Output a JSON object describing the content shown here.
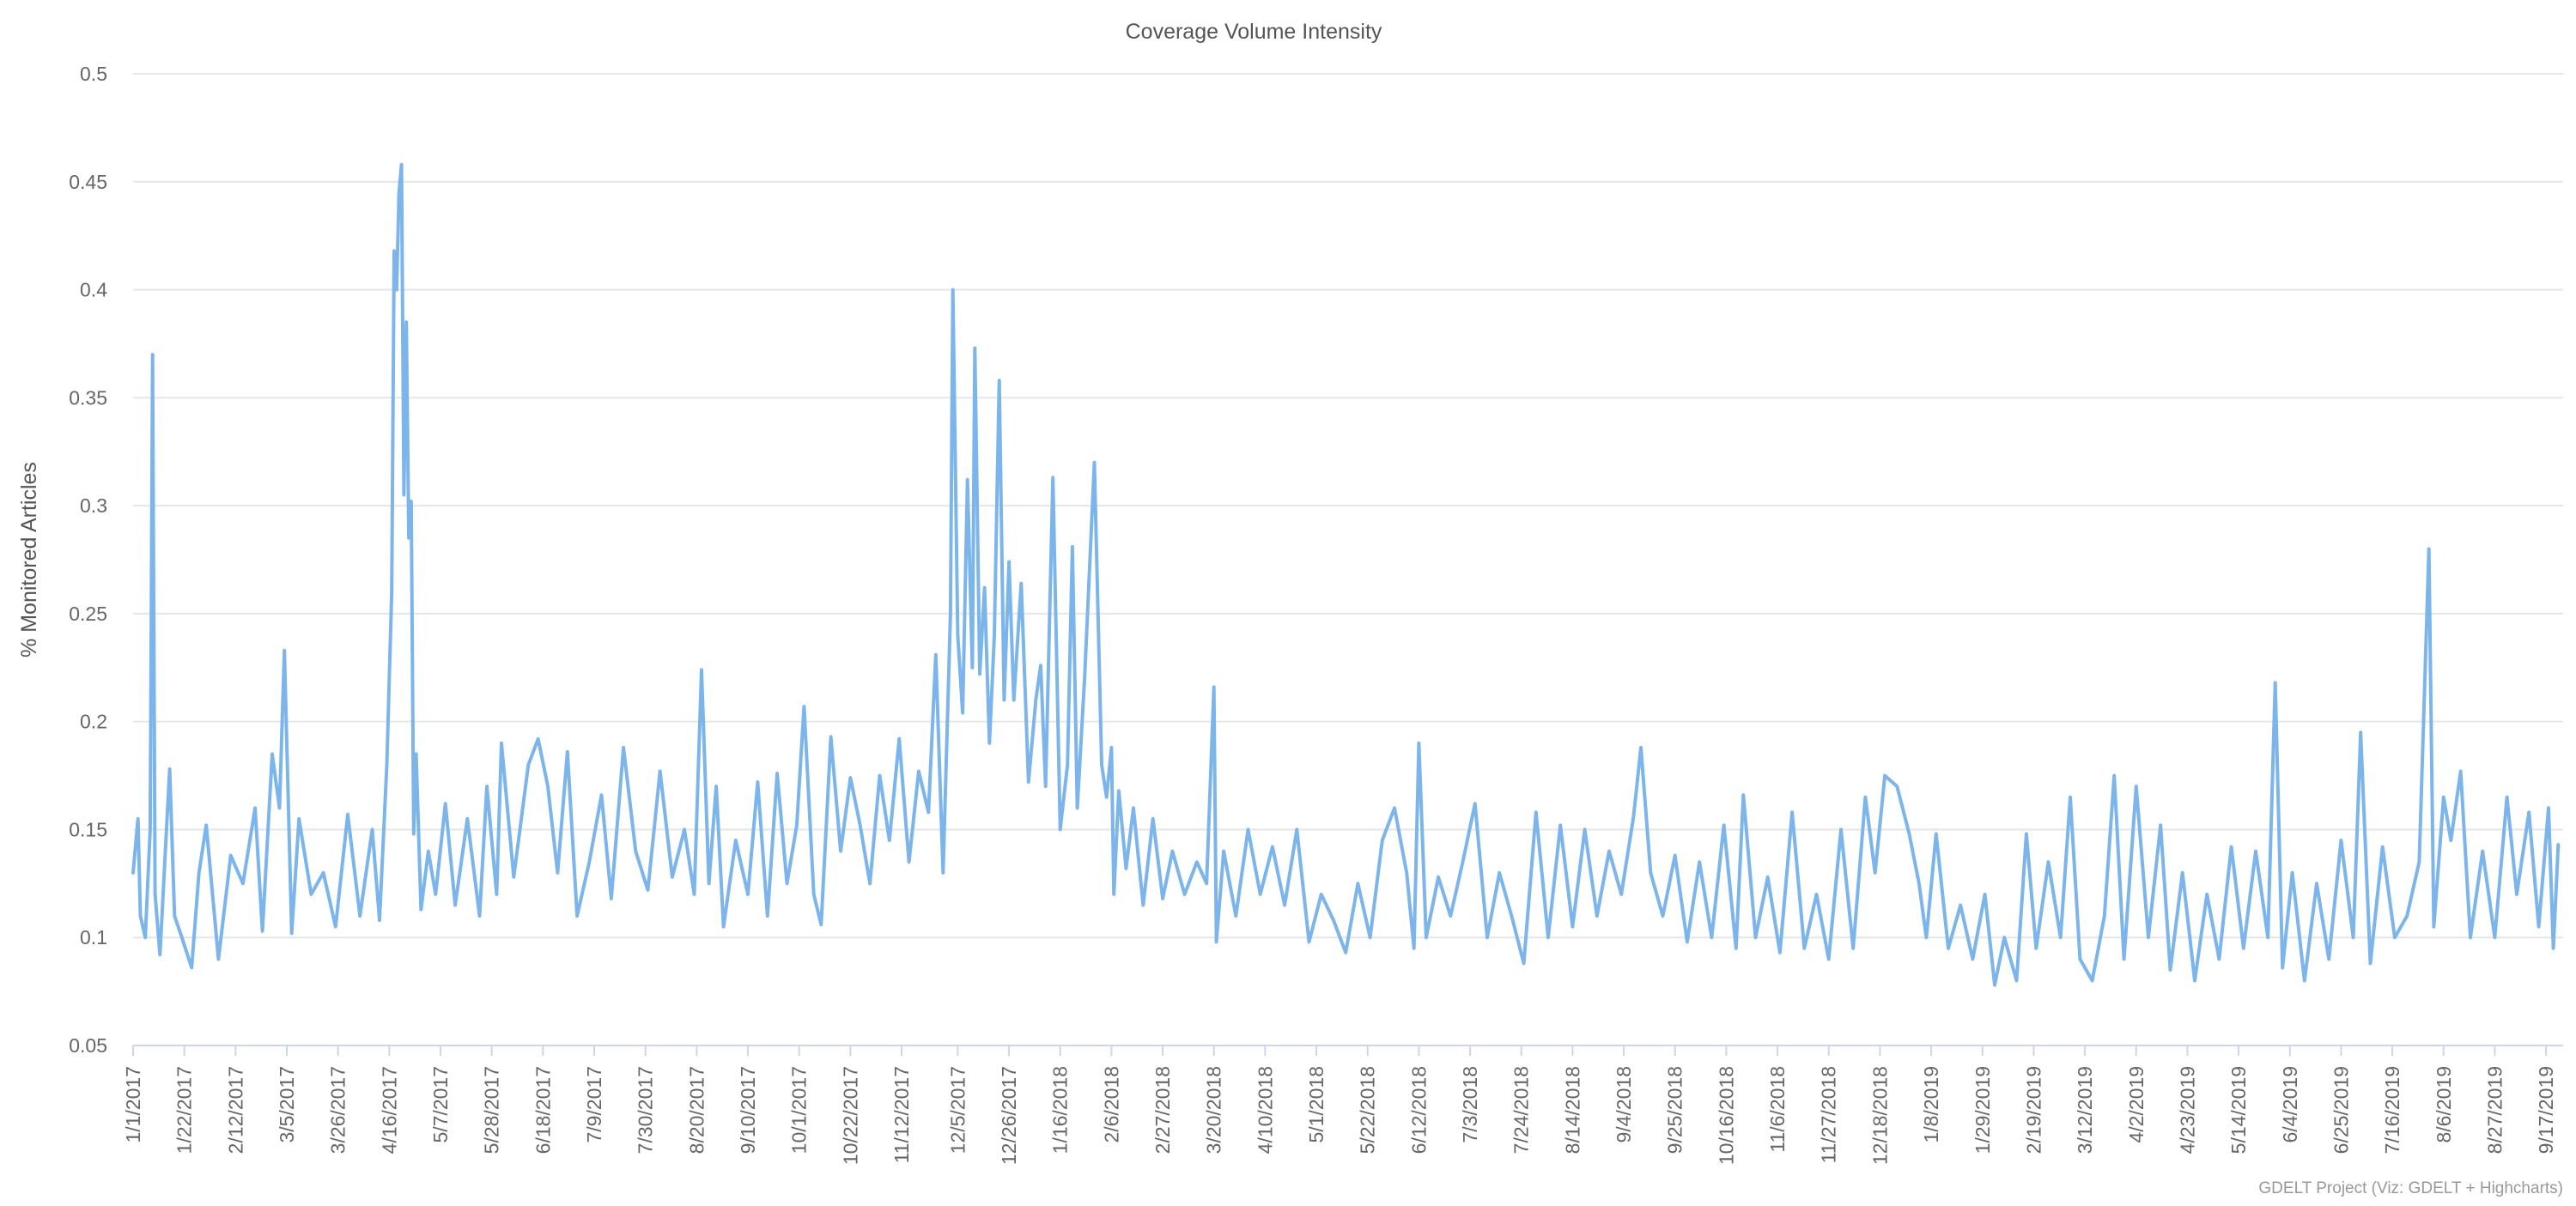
{
  "chart_data": {
    "type": "line",
    "title": "Coverage Volume Intensity",
    "ylabel": "% Monitored Articles",
    "xlabel": "",
    "ylim": [
      0.05,
      0.5
    ],
    "yticks": [
      "0.05",
      "0.1",
      "0.15",
      "0.2",
      "0.25",
      "0.3",
      "0.35",
      "0.4",
      "0.45",
      "0.5"
    ],
    "x_range": [
      "1/1/2017",
      "9/24/2019"
    ],
    "x_tick_labels": [
      "1/1/2017",
      "1/22/2017",
      "2/12/2017",
      "3/5/2017",
      "3/26/2017",
      "4/16/2017",
      "5/7/2017",
      "5/28/2017",
      "6/18/2017",
      "7/9/2017",
      "7/30/2017",
      "8/20/2017",
      "9/10/2017",
      "10/1/2017",
      "10/22/2017",
      "11/12/2017",
      "12/5/2017",
      "12/26/2017",
      "1/16/2018",
      "2/6/2018",
      "2/27/2018",
      "3/20/2018",
      "4/10/2018",
      "5/1/2018",
      "5/22/2018",
      "6/12/2018",
      "7/3/2018",
      "7/24/2018",
      "8/14/2018",
      "9/4/2018",
      "9/25/2018",
      "10/16/2018",
      "11/6/2018",
      "11/27/2018",
      "12/18/2018",
      "1/8/2019",
      "1/29/2019",
      "2/19/2019",
      "3/12/2019",
      "4/2/2019",
      "4/23/2019",
      "5/14/2019",
      "6/4/2019",
      "6/25/2019",
      "7/16/2019",
      "8/6/2019",
      "8/27/2019",
      "9/17/2019"
    ],
    "grid": true,
    "legend": "none",
    "series": [
      {
        "color": "#7cb5ec",
        "points": [
          [
            "1/1/2017",
            0.13
          ],
          [
            "1/3/2017",
            0.155
          ],
          [
            "1/4/2017",
            0.11
          ],
          [
            "1/6/2017",
            0.1
          ],
          [
            "1/8/2017",
            0.15
          ],
          [
            "1/9/2017",
            0.37
          ],
          [
            "1/10/2017",
            0.12
          ],
          [
            "1/12/2017",
            0.092
          ],
          [
            "1/14/2017",
            0.135
          ],
          [
            "1/16/2017",
            0.178
          ],
          [
            "1/18/2017",
            0.11
          ],
          [
            "1/21/2017",
            0.1
          ],
          [
            "1/25/2017",
            0.086
          ],
          [
            "1/28/2017",
            0.13
          ],
          [
            "1/31/2017",
            0.152
          ],
          [
            "2/5/2017",
            0.09
          ],
          [
            "2/10/2017",
            0.138
          ],
          [
            "2/15/2017",
            0.125
          ],
          [
            "2/20/2017",
            0.16
          ],
          [
            "2/23/2017",
            0.103
          ],
          [
            "2/27/2017",
            0.185
          ],
          [
            "3/2/2017",
            0.16
          ],
          [
            "3/4/2017",
            0.233
          ],
          [
            "3/7/2017",
            0.102
          ],
          [
            "3/10/2017",
            0.155
          ],
          [
            "3/15/2017",
            0.12
          ],
          [
            "3/20/2017",
            0.13
          ],
          [
            "3/25/2017",
            0.105
          ],
          [
            "3/30/2017",
            0.157
          ],
          [
            "4/4/2017",
            0.11
          ],
          [
            "4/9/2017",
            0.15
          ],
          [
            "4/12/2017",
            0.108
          ],
          [
            "4/15/2017",
            0.18
          ],
          [
            "4/17/2017",
            0.26
          ],
          [
            "4/18/2017",
            0.418
          ],
          [
            "4/19/2017",
            0.4
          ],
          [
            "4/20/2017",
            0.445
          ],
          [
            "4/21/2017",
            0.458
          ],
          [
            "4/22/2017",
            0.305
          ],
          [
            "4/23/2017",
            0.385
          ],
          [
            "4/24/2017",
            0.285
          ],
          [
            "4/25/2017",
            0.302
          ],
          [
            "4/26/2017",
            0.148
          ],
          [
            "4/27/2017",
            0.185
          ],
          [
            "4/29/2017",
            0.113
          ],
          [
            "5/2/2017",
            0.14
          ],
          [
            "5/5/2017",
            0.12
          ],
          [
            "5/9/2017",
            0.162
          ],
          [
            "5/13/2017",
            0.115
          ],
          [
            "5/18/2017",
            0.155
          ],
          [
            "5/23/2017",
            0.11
          ],
          [
            "5/26/2017",
            0.17
          ],
          [
            "5/30/2017",
            0.12
          ],
          [
            "6/1/2017",
            0.19
          ],
          [
            "6/6/2017",
            0.128
          ],
          [
            "6/12/2017",
            0.18
          ],
          [
            "6/16/2017",
            0.192
          ],
          [
            "6/20/2017",
            0.17
          ],
          [
            "6/24/2017",
            0.13
          ],
          [
            "6/28/2017",
            0.186
          ],
          [
            "7/2/2017",
            0.11
          ],
          [
            "7/7/2017",
            0.135
          ],
          [
            "7/12/2017",
            0.166
          ],
          [
            "7/16/2017",
            0.118
          ],
          [
            "7/21/2017",
            0.188
          ],
          [
            "7/26/2017",
            0.14
          ],
          [
            "7/31/2017",
            0.122
          ],
          [
            "8/5/2017",
            0.177
          ],
          [
            "8/10/2017",
            0.128
          ],
          [
            "8/15/2017",
            0.15
          ],
          [
            "8/19/2017",
            0.12
          ],
          [
            "8/22/2017",
            0.224
          ],
          [
            "8/25/2017",
            0.125
          ],
          [
            "8/28/2017",
            0.17
          ],
          [
            "8/31/2017",
            0.105
          ],
          [
            "9/5/2017",
            0.145
          ],
          [
            "9/10/2017",
            0.12
          ],
          [
            "9/14/2017",
            0.172
          ],
          [
            "9/18/2017",
            0.11
          ],
          [
            "9/22/2017",
            0.176
          ],
          [
            "9/26/2017",
            0.125
          ],
          [
            "9/30/2017",
            0.152
          ],
          [
            "10/3/2017",
            0.207
          ],
          [
            "10/7/2017",
            0.12
          ],
          [
            "10/10/2017",
            0.106
          ],
          [
            "10/14/2017",
            0.193
          ],
          [
            "10/18/2017",
            0.14
          ],
          [
            "10/22/2017",
            0.174
          ],
          [
            "10/26/2017",
            0.152
          ],
          [
            "10/30/2017",
            0.125
          ],
          [
            "11/3/2017",
            0.175
          ],
          [
            "11/7/2017",
            0.145
          ],
          [
            "11/11/2017",
            0.192
          ],
          [
            "11/15/2017",
            0.135
          ],
          [
            "11/19/2017",
            0.177
          ],
          [
            "11/23/2017",
            0.158
          ],
          [
            "11/26/2017",
            0.231
          ],
          [
            "11/29/2017",
            0.13
          ],
          [
            "12/2/2017",
            0.25
          ],
          [
            "12/3/2017",
            0.4
          ],
          [
            "12/5/2017",
            0.24
          ],
          [
            "12/7/2017",
            0.204
          ],
          [
            "12/9/2017",
            0.312
          ],
          [
            "12/11/2017",
            0.225
          ],
          [
            "12/12/2017",
            0.373
          ],
          [
            "12/14/2017",
            0.222
          ],
          [
            "12/16/2017",
            0.262
          ],
          [
            "12/18/2017",
            0.19
          ],
          [
            "12/20/2017",
            0.24
          ],
          [
            "12/22/2017",
            0.358
          ],
          [
            "12/24/2017",
            0.21
          ],
          [
            "12/26/2017",
            0.274
          ],
          [
            "12/28/2017",
            0.21
          ],
          [
            "12/31/2017",
            0.264
          ],
          [
            "1/3/2018",
            0.172
          ],
          [
            "1/6/2018",
            0.21
          ],
          [
            "1/8/2018",
            0.226
          ],
          [
            "1/10/2018",
            0.17
          ],
          [
            "1/13/2018",
            0.313
          ],
          [
            "1/16/2018",
            0.15
          ],
          [
            "1/19/2018",
            0.18
          ],
          [
            "1/21/2018",
            0.281
          ],
          [
            "1/23/2018",
            0.16
          ],
          [
            "1/26/2018",
            0.22
          ],
          [
            "1/30/2018",
            0.32
          ],
          [
            "2/2/2018",
            0.18
          ],
          [
            "2/4/2018",
            0.165
          ],
          [
            "2/6/2018",
            0.188
          ],
          [
            "2/7/2018",
            0.12
          ],
          [
            "2/9/2018",
            0.168
          ],
          [
            "2/12/2018",
            0.132
          ],
          [
            "2/15/2018",
            0.16
          ],
          [
            "2/19/2018",
            0.115
          ],
          [
            "2/23/2018",
            0.155
          ],
          [
            "2/27/2018",
            0.118
          ],
          [
            "3/3/2018",
            0.14
          ],
          [
            "3/8/2018",
            0.12
          ],
          [
            "3/13/2018",
            0.135
          ],
          [
            "3/17/2018",
            0.125
          ],
          [
            "3/20/2018",
            0.216
          ],
          [
            "3/21/2018",
            0.098
          ],
          [
            "3/24/2018",
            0.14
          ],
          [
            "3/29/2018",
            0.11
          ],
          [
            "4/3/2018",
            0.15
          ],
          [
            "4/8/2018",
            0.12
          ],
          [
            "4/13/2018",
            0.142
          ],
          [
            "4/18/2018",
            0.115
          ],
          [
            "4/23/2018",
            0.15
          ],
          [
            "4/28/2018",
            0.098
          ],
          [
            "5/3/2018",
            0.12
          ],
          [
            "5/8/2018",
            0.108
          ],
          [
            "5/13/2018",
            0.093
          ],
          [
            "5/18/2018",
            0.125
          ],
          [
            "5/23/2018",
            0.1
          ],
          [
            "5/28/2018",
            0.145
          ],
          [
            "6/2/2018",
            0.16
          ],
          [
            "6/7/2018",
            0.13
          ],
          [
            "6/10/2018",
            0.095
          ],
          [
            "6/12/2018",
            0.19
          ],
          [
            "6/15/2018",
            0.1
          ],
          [
            "6/20/2018",
            0.128
          ],
          [
            "6/25/2018",
            0.11
          ],
          [
            "6/30/2018",
            0.135
          ],
          [
            "7/5/2018",
            0.162
          ],
          [
            "7/10/2018",
            0.1
          ],
          [
            "7/15/2018",
            0.13
          ],
          [
            "7/20/2018",
            0.11
          ],
          [
            "7/25/2018",
            0.088
          ],
          [
            "7/30/2018",
            0.158
          ],
          [
            "8/4/2018",
            0.1
          ],
          [
            "8/9/2018",
            0.152
          ],
          [
            "8/14/2018",
            0.105
          ],
          [
            "8/19/2018",
            0.15
          ],
          [
            "8/24/2018",
            0.11
          ],
          [
            "8/29/2018",
            0.14
          ],
          [
            "9/3/2018",
            0.12
          ],
          [
            "9/8/2018",
            0.156
          ],
          [
            "9/11/2018",
            0.188
          ],
          [
            "9/15/2018",
            0.13
          ],
          [
            "9/20/2018",
            0.11
          ],
          [
            "9/25/2018",
            0.138
          ],
          [
            "9/30/2018",
            0.098
          ],
          [
            "10/5/2018",
            0.135
          ],
          [
            "10/10/2018",
            0.1
          ],
          [
            "10/15/2018",
            0.152
          ],
          [
            "10/20/2018",
            0.095
          ],
          [
            "10/23/2018",
            0.166
          ],
          [
            "10/28/2018",
            0.1
          ],
          [
            "11/2/2018",
            0.128
          ],
          [
            "11/7/2018",
            0.093
          ],
          [
            "11/12/2018",
            0.158
          ],
          [
            "11/17/2018",
            0.095
          ],
          [
            "11/22/2018",
            0.12
          ],
          [
            "11/27/2018",
            0.09
          ],
          [
            "12/2/2018",
            0.15
          ],
          [
            "12/7/2018",
            0.095
          ],
          [
            "12/12/2018",
            0.165
          ],
          [
            "12/16/2018",
            0.13
          ],
          [
            "12/20/2018",
            0.175
          ],
          [
            "12/25/2018",
            0.17
          ],
          [
            "12/30/2018",
            0.148
          ],
          [
            "1/3/2019",
            0.125
          ],
          [
            "1/6/2019",
            0.1
          ],
          [
            "1/10/2019",
            0.148
          ],
          [
            "1/15/2019",
            0.095
          ],
          [
            "1/20/2019",
            0.115
          ],
          [
            "1/25/2019",
            0.09
          ],
          [
            "1/30/2019",
            0.12
          ],
          [
            "2/3/2019",
            0.078
          ],
          [
            "2/7/2019",
            0.1
          ],
          [
            "2/12/2019",
            0.08
          ],
          [
            "2/16/2019",
            0.148
          ],
          [
            "2/20/2019",
            0.095
          ],
          [
            "2/25/2019",
            0.135
          ],
          [
            "3/2/2019",
            0.1
          ],
          [
            "3/6/2019",
            0.165
          ],
          [
            "3/10/2019",
            0.09
          ],
          [
            "3/15/2019",
            0.08
          ],
          [
            "3/20/2019",
            0.11
          ],
          [
            "3/24/2019",
            0.175
          ],
          [
            "3/28/2019",
            0.09
          ],
          [
            "4/2/2019",
            0.17
          ],
          [
            "4/7/2019",
            0.1
          ],
          [
            "4/12/2019",
            0.152
          ],
          [
            "4/16/2019",
            0.085
          ],
          [
            "4/21/2019",
            0.13
          ],
          [
            "4/26/2019",
            0.08
          ],
          [
            "5/1/2019",
            0.12
          ],
          [
            "5/6/2019",
            0.09
          ],
          [
            "5/11/2019",
            0.142
          ],
          [
            "5/16/2019",
            0.095
          ],
          [
            "5/21/2019",
            0.14
          ],
          [
            "5/26/2019",
            0.1
          ],
          [
            "5/29/2019",
            0.218
          ],
          [
            "6/1/2019",
            0.086
          ],
          [
            "6/5/2019",
            0.13
          ],
          [
            "6/10/2019",
            0.08
          ],
          [
            "6/15/2019",
            0.125
          ],
          [
            "6/20/2019",
            0.09
          ],
          [
            "6/25/2019",
            0.145
          ],
          [
            "6/30/2019",
            0.1
          ],
          [
            "7/3/2019",
            0.195
          ],
          [
            "7/7/2019",
            0.088
          ],
          [
            "7/12/2019",
            0.142
          ],
          [
            "7/17/2019",
            0.1
          ],
          [
            "7/22/2019",
            0.11
          ],
          [
            "7/27/2019",
            0.135
          ],
          [
            "7/31/2019",
            0.28
          ],
          [
            "8/2/2019",
            0.105
          ],
          [
            "8/6/2019",
            0.165
          ],
          [
            "8/9/2019",
            0.145
          ],
          [
            "8/13/2019",
            0.177
          ],
          [
            "8/17/2019",
            0.1
          ],
          [
            "8/22/2019",
            0.14
          ],
          [
            "8/27/2019",
            0.1
          ],
          [
            "9/1/2019",
            0.165
          ],
          [
            "9/5/2019",
            0.12
          ],
          [
            "9/10/2019",
            0.158
          ],
          [
            "9/14/2019",
            0.105
          ],
          [
            "9/18/2019",
            0.16
          ],
          [
            "9/20/2019",
            0.095
          ],
          [
            "9/22/2019",
            0.143
          ]
        ]
      }
    ],
    "credit": "GDELT Project (Viz: GDELT + Highcharts)"
  }
}
